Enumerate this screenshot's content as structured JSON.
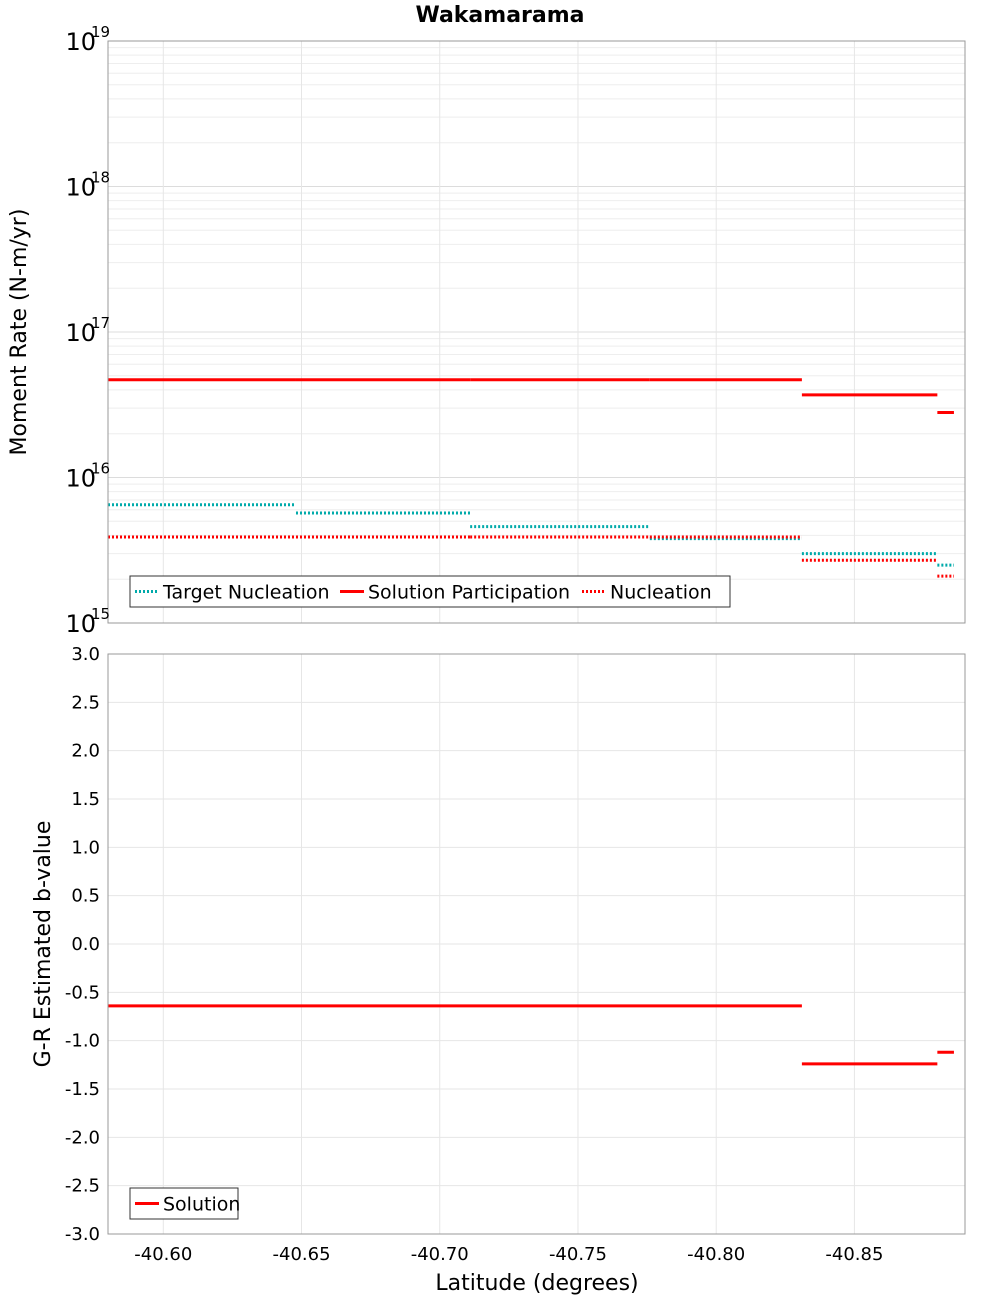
{
  "chart_data": [
    {
      "type": "line",
      "title": "Wakamarama",
      "xlabel": "",
      "ylabel": "Moment Rate (N-m/yr)",
      "yscale": "log",
      "ylim": [
        1000000000000000.0,
        1e+19
      ],
      "xlim": [
        -40.58,
        -40.89
      ],
      "x_reversed": true,
      "grid": true,
      "legend_position": "bottom-left",
      "y_ticks": [
        {
          "base": "10",
          "exp": "15",
          "value": 1000000000000000.0
        },
        {
          "base": "10",
          "exp": "16",
          "value": 1e+16
        },
        {
          "base": "10",
          "exp": "17",
          "value": 1e+17
        },
        {
          "base": "10",
          "exp": "18",
          "value": 1e+18
        },
        {
          "base": "10",
          "exp": "19",
          "value": 1e+19
        }
      ],
      "series": [
        {
          "name": "Target Nucleation",
          "style": "dotted",
          "color": "#00aaaa",
          "segments": [
            {
              "x0": -40.58,
              "x1": -40.648,
              "y": 6500000000000000.0
            },
            {
              "x0": -40.648,
              "x1": -40.711,
              "y": 5700000000000000.0
            },
            {
              "x0": -40.711,
              "x1": -40.776,
              "y": 4600000000000000.0
            },
            {
              "x0": -40.776,
              "x1": -40.831,
              "y": 3800000000000000.0
            },
            {
              "x0": -40.831,
              "x1": -40.88,
              "y": 3000000000000000.0
            },
            {
              "x0": -40.88,
              "x1": -40.886,
              "y": 2500000000000000.0
            }
          ]
        },
        {
          "name": "Solution Participation",
          "style": "solid",
          "color": "#ff0000",
          "segments": [
            {
              "x0": -40.58,
              "x1": -40.648,
              "y": 4.7e+16
            },
            {
              "x0": -40.648,
              "x1": -40.711,
              "y": 4.7e+16
            },
            {
              "x0": -40.711,
              "x1": -40.776,
              "y": 4.7e+16
            },
            {
              "x0": -40.776,
              "x1": -40.831,
              "y": 4.7e+16
            },
            {
              "x0": -40.831,
              "x1": -40.88,
              "y": 3.7e+16
            },
            {
              "x0": -40.88,
              "x1": -40.886,
              "y": 2.8e+16
            }
          ]
        },
        {
          "name": "Nucleation",
          "style": "dotted",
          "color": "#ff0000",
          "segments": [
            {
              "x0": -40.58,
              "x1": -40.648,
              "y": 3900000000000000.0
            },
            {
              "x0": -40.648,
              "x1": -40.711,
              "y": 3900000000000000.0
            },
            {
              "x0": -40.711,
              "x1": -40.776,
              "y": 3900000000000000.0
            },
            {
              "x0": -40.776,
              "x1": -40.831,
              "y": 3900000000000000.0
            },
            {
              "x0": -40.831,
              "x1": -40.88,
              "y": 2700000000000000.0
            },
            {
              "x0": -40.88,
              "x1": -40.886,
              "y": 2100000000000000.0
            }
          ]
        }
      ]
    },
    {
      "type": "line",
      "title": "",
      "xlabel": "Latitude (degrees)",
      "ylabel": "G-R Estimated b-value",
      "ylim": [
        -3.0,
        3.0
      ],
      "xlim": [
        -40.58,
        -40.89
      ],
      "x_reversed": true,
      "grid": true,
      "legend_position": "bottom-left",
      "y_ticks": [
        "-3.0",
        "-2.5",
        "-2.0",
        "-1.5",
        "-1.0",
        "-0.5",
        "0.0",
        "0.5",
        "1.0",
        "1.5",
        "2.0",
        "2.5",
        "3.0"
      ],
      "x_ticks": [
        "-40.60",
        "-40.65",
        "-40.70",
        "-40.75",
        "-40.80",
        "-40.85"
      ],
      "series": [
        {
          "name": "Solution",
          "style": "solid",
          "color": "#ff0000",
          "segments": [
            {
              "x0": -40.58,
              "x1": -40.831,
              "y": -0.64
            },
            {
              "x0": -40.831,
              "x1": -40.88,
              "y": -1.24
            },
            {
              "x0": -40.88,
              "x1": -40.886,
              "y": -1.12
            }
          ]
        }
      ]
    }
  ]
}
